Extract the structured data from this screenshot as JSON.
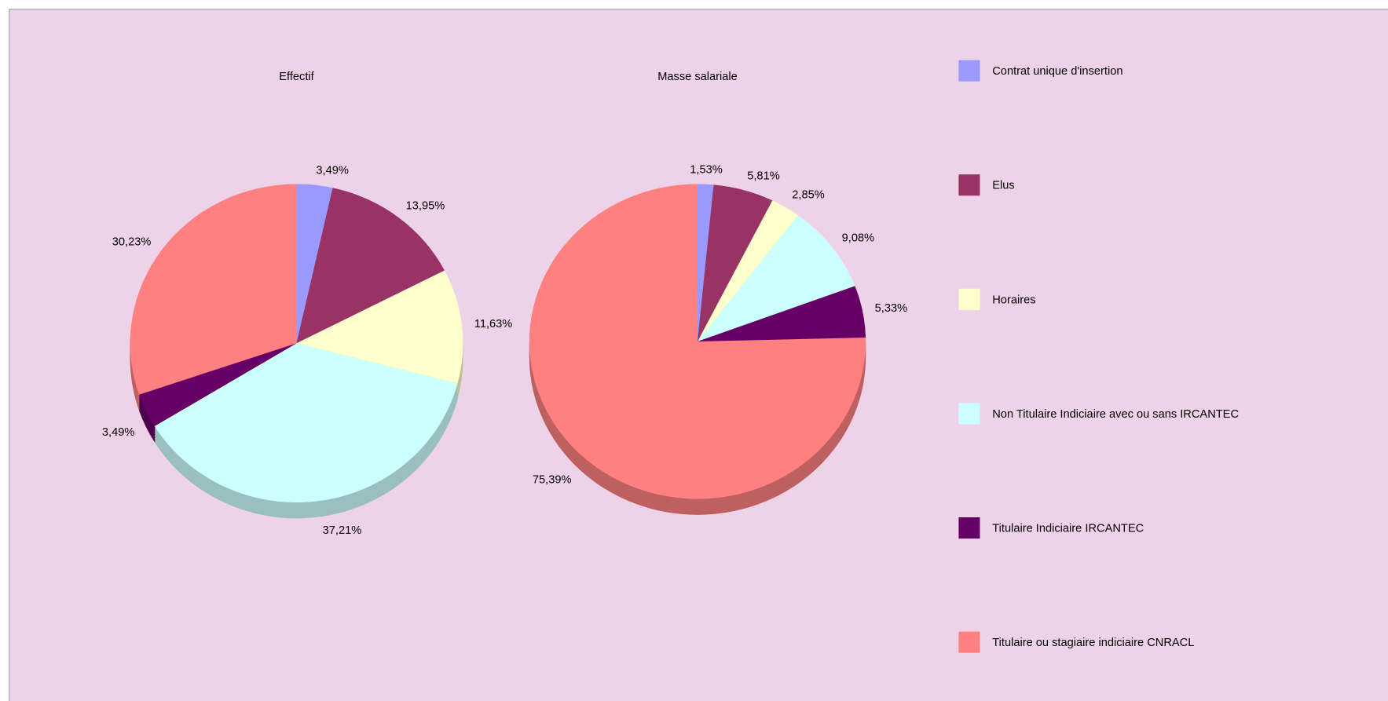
{
  "chart_data": [
    {
      "type": "pie",
      "title": "Effectif",
      "categories": [
        "Contrat unique d'insertion",
        "Elus",
        "Horaires",
        "Non Titulaire Indiciaire avec ou sans IRCANTEC",
        "Titulaire Indiciaire IRCANTEC",
        "Titulaire ou stagiaire indiciaire CNRACL"
      ],
      "values": [
        3.49,
        13.95,
        11.63,
        37.21,
        3.49,
        30.23
      ],
      "value_labels": [
        "3,49%",
        "13,95%",
        "11,63%",
        "37,21%",
        "3,49%",
        "30,23%"
      ],
      "colors": [
        "#9999ff",
        "#993366",
        "#ffffcc",
        "#ccffff",
        "#660066",
        "#ff8080"
      ]
    },
    {
      "type": "pie",
      "title": "Masse salariale",
      "categories": [
        "Contrat unique d'insertion",
        "Elus",
        "Horaires",
        "Non Titulaire Indiciaire avec ou sans IRCANTEC",
        "Titulaire Indiciaire IRCANTEC",
        "Titulaire ou stagiaire indiciaire CNRACL"
      ],
      "values": [
        1.53,
        5.81,
        2.85,
        9.08,
        5.33,
        75.39
      ],
      "value_labels": [
        "1,53%",
        "5,81%",
        "2,85%",
        "9,08%",
        "5,33%",
        "75,39%"
      ],
      "colors": [
        "#9999ff",
        "#993366",
        "#ffffcc",
        "#ccffff",
        "#660066",
        "#ff8080"
      ]
    }
  ]
}
